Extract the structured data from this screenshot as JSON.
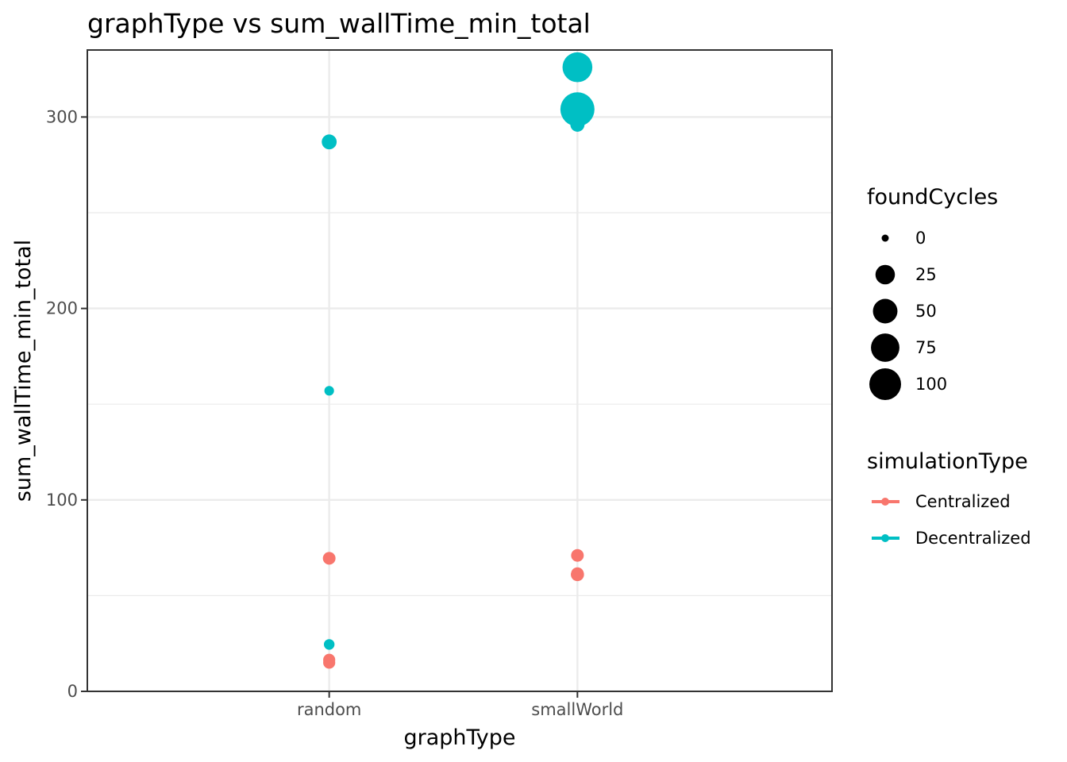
{
  "chart_data": {
    "type": "scatter",
    "title": "graphType  vs  sum_wallTime_min_total",
    "xlabel": "graphType",
    "ylabel": "sum_wallTime_min_total",
    "categories": [
      "random",
      "smallWorld"
    ],
    "ylim": [
      0,
      335
    ],
    "yticks": [
      0,
      100,
      200,
      300
    ],
    "grid": true,
    "size_legend": {
      "title": "foundCycles",
      "values": [
        0,
        25,
        50,
        75,
        100
      ],
      "labels": [
        "0",
        "25",
        "50",
        "75",
        "100"
      ]
    },
    "color_legend": {
      "title": "simulationType",
      "entries": [
        "Centralized",
        "Decentralized"
      ]
    },
    "colors": {
      "Centralized": "#F8766D",
      "Decentralized": "#00BFC4"
    },
    "series": [
      {
        "name": "Centralized",
        "points": [
          {
            "x": "random",
            "y": 69.5,
            "foundCycles": 5
          },
          {
            "x": "random",
            "y": 16.5,
            "foundCycles": 4
          },
          {
            "x": "random",
            "y": 15.0,
            "foundCycles": 4
          },
          {
            "x": "smallWorld",
            "y": 71.0,
            "foundCycles": 5
          },
          {
            "x": "smallWorld",
            "y": 61.0,
            "foundCycles": 6
          },
          {
            "x": "smallWorld",
            "y": 61.5,
            "foundCycles": 5
          }
        ]
      },
      {
        "name": "Decentralized",
        "points": [
          {
            "x": "random",
            "y": 287.0,
            "foundCycles": 10
          },
          {
            "x": "random",
            "y": 157.0,
            "foundCycles": 1
          },
          {
            "x": "random",
            "y": 24.5,
            "foundCycles": 2
          },
          {
            "x": "smallWorld",
            "y": 326.0,
            "foundCycles": 85
          },
          {
            "x": "smallWorld",
            "y": 304.0,
            "foundCycles": 120
          },
          {
            "x": "smallWorld",
            "y": 296.0,
            "foundCycles": 8
          }
        ]
      }
    ]
  }
}
